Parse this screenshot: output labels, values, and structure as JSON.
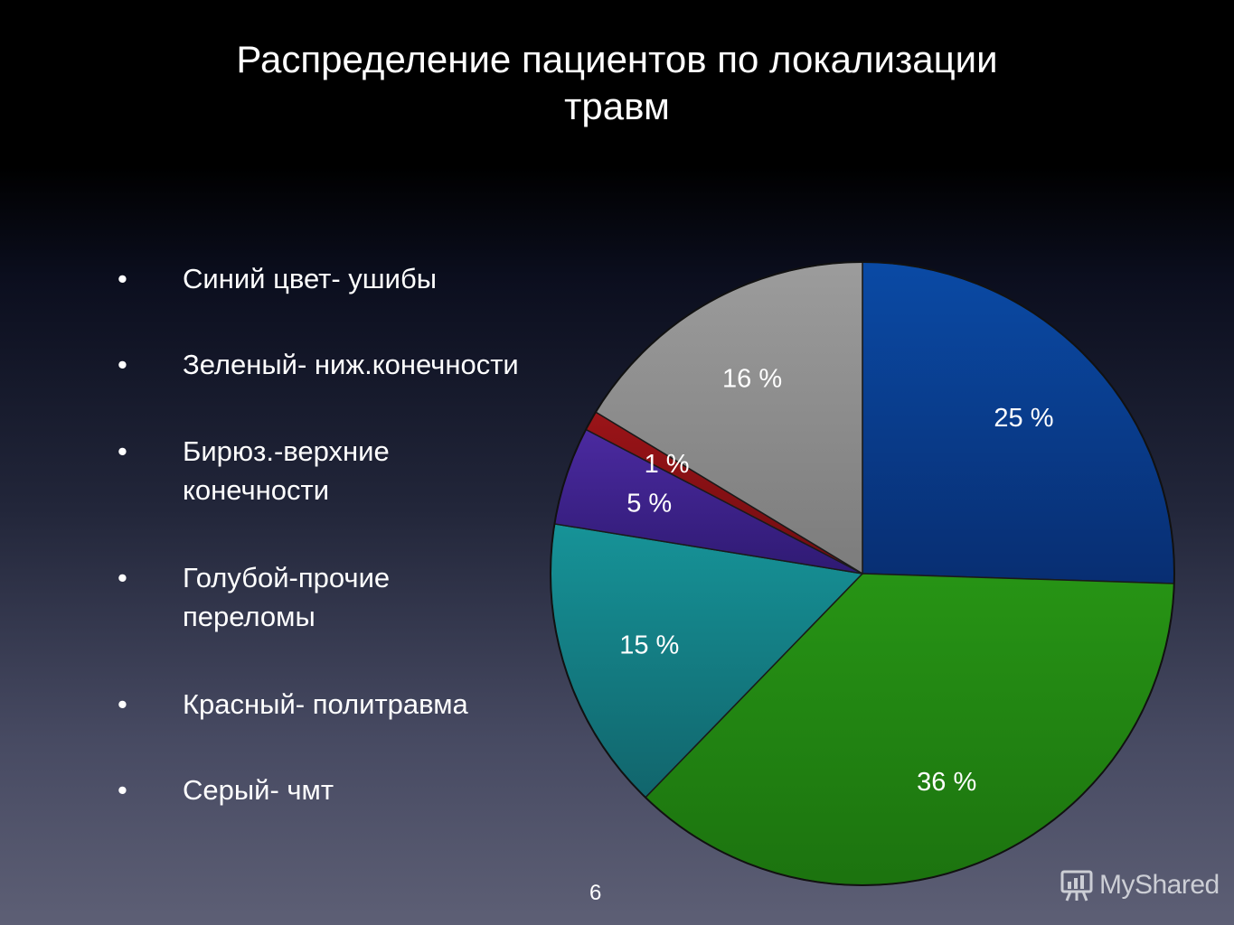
{
  "title": {
    "line1": "Распределение пациентов по локализации",
    "line2": "травм"
  },
  "bullets": [
    {
      "marker": "•",
      "text": "Синий цвет- ушибы"
    },
    {
      "marker": "•",
      "text": "Зеленый- ниж.конечности"
    },
    {
      "marker": "•",
      "text": "Бирюз.-верхние конечности"
    },
    {
      "marker": "•",
      "text": "Голубой-прочие переломы"
    },
    {
      "marker": "•",
      "text": "Красный- политравма"
    },
    {
      "marker": "•",
      "text": "Серый- чмт"
    }
  ],
  "page_number": "6",
  "watermark": {
    "text": "MyShared",
    "icon": "presentation-board-icon"
  },
  "chart_data": {
    "type": "pie",
    "start_angle_deg": 0,
    "direction": "clockwise",
    "slices": [
      {
        "label": "25 %",
        "value": 25,
        "color": "#0a4aa5",
        "color_dark": "#082e72"
      },
      {
        "label": "36 %",
        "value": 36,
        "color": "#279415",
        "color_dark": "#1c730f"
      },
      {
        "label": "15 %",
        "value": 15,
        "color": "#169398",
        "color_dark": "#11656c"
      },
      {
        "label": "5 %",
        "value": 5,
        "color": "#4b2aa0",
        "color_dark": "#2f1a73"
      },
      {
        "label": "1 %",
        "value": 1,
        "color": "#9b1418",
        "color_dark": "#6f0c10"
      },
      {
        "label": "16 %",
        "value": 16,
        "color": "#9c9c9c",
        "color_dark": "#7c7c7c"
      }
    ]
  }
}
